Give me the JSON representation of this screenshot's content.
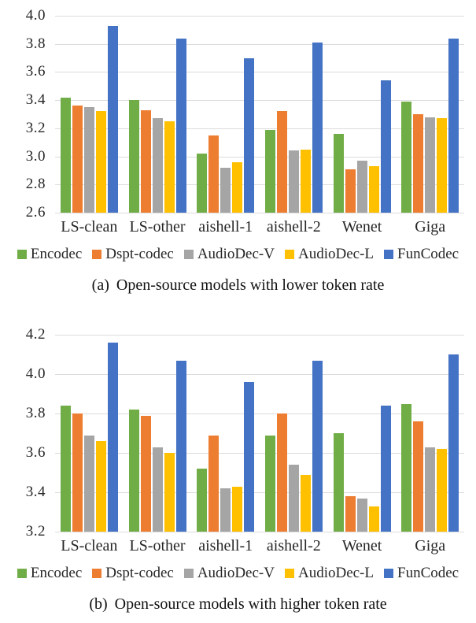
{
  "chart_data": [
    {
      "type": "bar",
      "caption_label": "(a)",
      "caption_text": "Open-source models with lower token rate",
      "categories": [
        "LS-clean",
        "LS-other",
        "aishell-1",
        "aishell-2",
        "Wenet",
        "Giga"
      ],
      "series": [
        {
          "name": "Encodec",
          "color": "#70AD47",
          "values": [
            3.42,
            3.4,
            3.02,
            3.19,
            3.16,
            3.39
          ]
        },
        {
          "name": "Dspt-codec",
          "color": "#ED7D31",
          "values": [
            3.36,
            3.33,
            3.15,
            3.32,
            2.91,
            3.3
          ]
        },
        {
          "name": "AudioDec-V",
          "color": "#A5A5A5",
          "values": [
            3.35,
            3.27,
            2.92,
            3.04,
            2.97,
            3.28
          ]
        },
        {
          "name": "AudioDec-L",
          "color": "#FFC000",
          "values": [
            3.32,
            3.25,
            2.96,
            3.05,
            2.93,
            3.27
          ]
        },
        {
          "name": "FunCodec",
          "color": "#4472C4",
          "values": [
            3.93,
            3.84,
            3.7,
            3.81,
            3.54,
            3.84
          ]
        }
      ],
      "ylim": [
        2.6,
        4.0
      ],
      "ytick_step": 0.2,
      "yticks": [
        "4.0",
        "3.8",
        "3.6",
        "3.4",
        "3.2",
        "3.0",
        "2.8",
        "2.6"
      ],
      "grid": true,
      "legend_position": "bottom"
    },
    {
      "type": "bar",
      "caption_label": "(b)",
      "caption_text": "Open-source models with higher token rate",
      "categories": [
        "LS-clean",
        "LS-other",
        "aishell-1",
        "aishell-2",
        "Wenet",
        "Giga"
      ],
      "series": [
        {
          "name": "Encodec",
          "color": "#70AD47",
          "values": [
            3.84,
            3.82,
            3.52,
            3.69,
            3.7,
            3.85
          ]
        },
        {
          "name": "Dspt-codec",
          "color": "#ED7D31",
          "values": [
            3.8,
            3.79,
            3.69,
            3.8,
            3.38,
            3.76
          ]
        },
        {
          "name": "AudioDec-V",
          "color": "#A5A5A5",
          "values": [
            3.69,
            3.63,
            3.42,
            3.54,
            3.37,
            3.63
          ]
        },
        {
          "name": "AudioDec-L",
          "color": "#FFC000",
          "values": [
            3.66,
            3.6,
            3.43,
            3.49,
            3.33,
            3.62
          ]
        },
        {
          "name": "FunCodec",
          "color": "#4472C4",
          "values": [
            4.16,
            4.07,
            3.96,
            4.07,
            3.84,
            4.1
          ]
        }
      ],
      "ylim": [
        3.2,
        4.2
      ],
      "ytick_step": 0.2,
      "yticks": [
        "4.2",
        "4.0",
        "3.8",
        "3.6",
        "3.4",
        "3.2"
      ],
      "grid": true,
      "legend_position": "bottom"
    }
  ]
}
